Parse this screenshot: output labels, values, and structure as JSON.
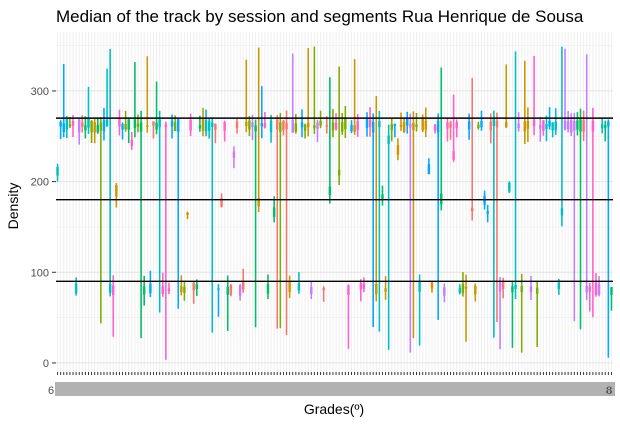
{
  "chart_data": {
    "type": "box",
    "title": "Median of the track by session and segments Rua Henrique de Sousa",
    "xlabel": "Grades(º)",
    "ylabel": "Density",
    "ylim": [
      -10,
      365
    ],
    "y_ticks": [
      0,
      100,
      200,
      300
    ],
    "x_tick_label_first": "6",
    "x_tick_label_last": "8",
    "grid": true,
    "hlines": [
      90,
      180,
      270
    ],
    "colors": [
      "#F8766D",
      "#CD9600",
      "#7CAE00",
      "#00BE67",
      "#00BFC4",
      "#00A9FF",
      "#C77CFF",
      "#FF61CC"
    ],
    "n_categories": 180,
    "seed": 20240611
  }
}
